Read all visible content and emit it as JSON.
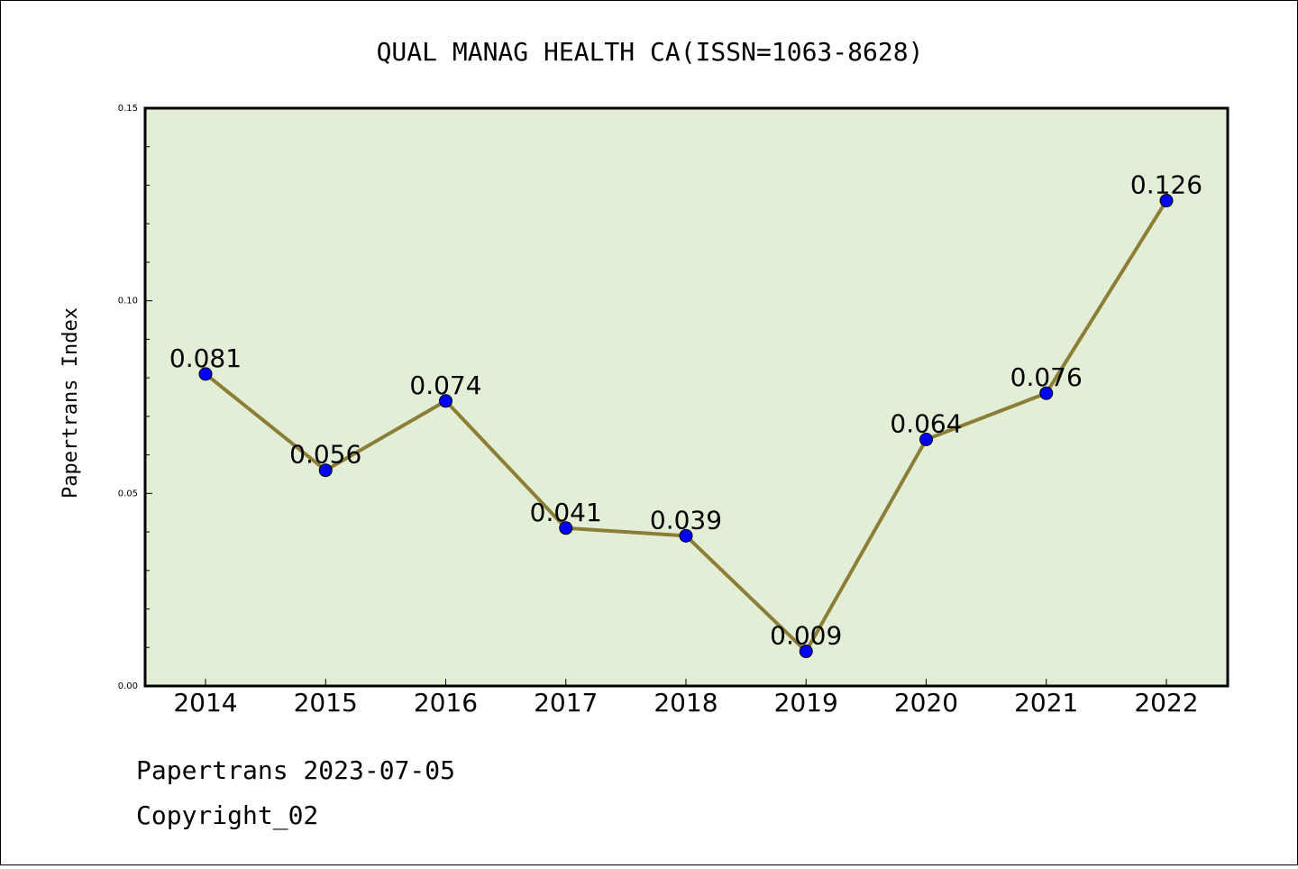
{
  "chart_data": {
    "type": "line",
    "title": "QUAL MANAG HEALTH CA(ISSN=1063-8628)",
    "ylabel": "Papertrans Index",
    "xlabel": "",
    "categories": [
      "2014",
      "2015",
      "2016",
      "2017",
      "2018",
      "2019",
      "2020",
      "2021",
      "2022"
    ],
    "series": [
      {
        "values": [
          0.081,
          0.056,
          0.074,
          0.041,
          0.039,
          0.009,
          0.064,
          0.076,
          0.126
        ],
        "data_labels": [
          "0.081",
          "0.056",
          "0.074",
          "0.041",
          "0.039",
          "0.009",
          "0.064",
          "0.076",
          "0.126"
        ]
      }
    ],
    "ylim": [
      0,
      0.15
    ],
    "yticks": [
      "0.00",
      "0.05",
      "0.10",
      "0.15"
    ],
    "grid": false,
    "colors": {
      "plot_background": "#e2efd6",
      "line": "#8c7d37",
      "marker": "#0000ff"
    }
  },
  "footer": {
    "line1": "Papertrans 2023-07-05",
    "line2": "Copyright_02"
  }
}
